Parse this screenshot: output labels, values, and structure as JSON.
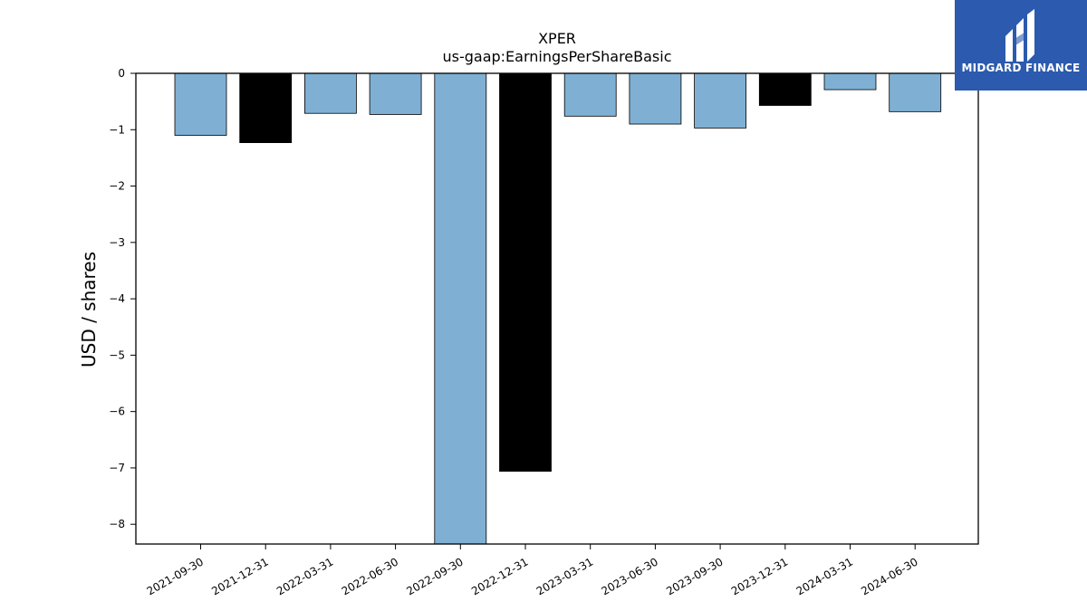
{
  "brand": {
    "name": "MIDGARD FINANCE",
    "bg_color": "#2b5aae"
  },
  "chart_data": {
    "type": "bar",
    "title": "XPER",
    "subtitle": "us-gaap:EarningsPerShareBasic",
    "xlabel": "",
    "ylabel": "USD / shares",
    "categories": [
      "2021-09-30",
      "2021-12-31",
      "2022-03-31",
      "2022-06-30",
      "2022-09-30",
      "2022-12-31",
      "2023-03-31",
      "2023-06-30",
      "2023-09-30",
      "2023-12-31",
      "2024-03-31",
      "2024-06-30"
    ],
    "values": [
      -1.1,
      -1.23,
      -0.71,
      -0.73,
      -8.5,
      -7.06,
      -0.76,
      -0.9,
      -0.97,
      -0.57,
      -0.29,
      -0.68
    ],
    "bar_colors": [
      "#7fb0d4",
      "#000000",
      "#7fb0d4",
      "#7fb0d4",
      "#7fb0d4",
      "#000000",
      "#7fb0d4",
      "#7fb0d4",
      "#7fb0d4",
      "#000000",
      "#7fb0d4",
      "#7fb0d4"
    ],
    "yticks": [
      0,
      -1,
      -2,
      -3,
      -4,
      -5,
      -6,
      -7,
      -8
    ],
    "ylim": [
      -8.35,
      0
    ],
    "grid": false,
    "legend": "none"
  }
}
